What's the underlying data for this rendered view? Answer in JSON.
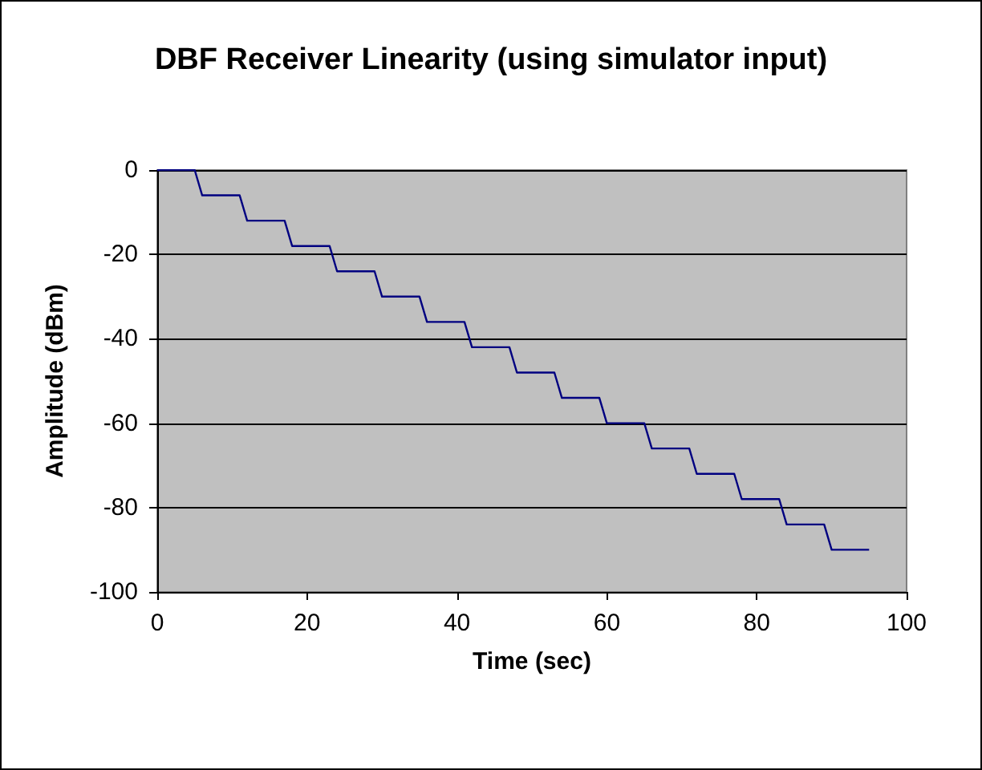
{
  "chart_data": {
    "type": "line",
    "title": "DBF Receiver Linearity (using simulator input)",
    "xlabel": "Time (sec)",
    "ylabel": "Amplitude (dBm)",
    "x": [
      0,
      5,
      6,
      11,
      12,
      17,
      18,
      23,
      24,
      29,
      30,
      35,
      36,
      41,
      42,
      47,
      48,
      53,
      54,
      59,
      60,
      65,
      66,
      71,
      72,
      77,
      78,
      83,
      84,
      89,
      90,
      95
    ],
    "series": [
      {
        "color": "#000080",
        "values": [
          0,
          0,
          -6,
          -6,
          -12,
          -12,
          -18,
          -18,
          -24,
          -24,
          -30,
          -30,
          -36,
          -36,
          -42,
          -42,
          -48,
          -48,
          -54,
          -54,
          -60,
          -60,
          -66,
          -66,
          -72,
          -72,
          -78,
          -78,
          -84,
          -84,
          -90,
          -90
        ]
      }
    ],
    "xlim": [
      0,
      100
    ],
    "xticks": [
      0,
      20,
      40,
      60,
      80,
      100
    ],
    "ylim": [
      -100,
      0
    ],
    "yticks": [
      -100,
      -80,
      -60,
      -40,
      -20,
      0
    ],
    "grid": "y",
    "marker": "none",
    "line_style": "solid"
  }
}
